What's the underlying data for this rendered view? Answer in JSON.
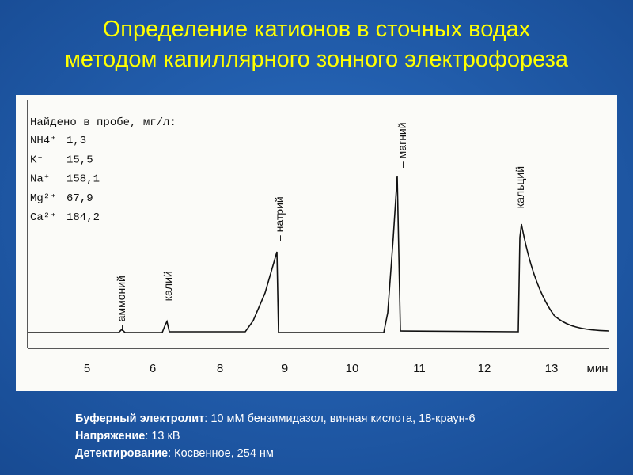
{
  "title": [
    "Определение катионов в сточных водах",
    "методом капиллярного зонного электрофореза"
  ],
  "figure": {
    "legend": {
      "heading": "Найдено в пробе, мг/л:",
      "rows": [
        {
          "ion": "NH4⁺",
          "value": "1,3"
        },
        {
          "ion": "K⁺",
          "value": "15,5"
        },
        {
          "ion": "Na⁺",
          "value": "158,1"
        },
        {
          "ion": "Mg²⁺",
          "value": "67,9"
        },
        {
          "ion": "Ca²⁺",
          "value": "184,2"
        }
      ]
    },
    "peaks": [
      "– аммоний",
      "– калий",
      "– натрий",
      "– магний",
      "– кальций"
    ],
    "x_ticks": [
      5,
      6,
      8,
      9,
      10,
      11,
      12,
      13
    ],
    "x_unit": "мин"
  },
  "notes": [
    {
      "label": "Буферный электролит",
      "text": ": 10 мМ бензимидазол, винная кислота, 18-краун-6"
    },
    {
      "label": "Напряжение",
      "text": ": 13 кВ"
    },
    {
      "label": "Детектирование",
      "text": ": Косвенное, 254 нм"
    }
  ]
}
